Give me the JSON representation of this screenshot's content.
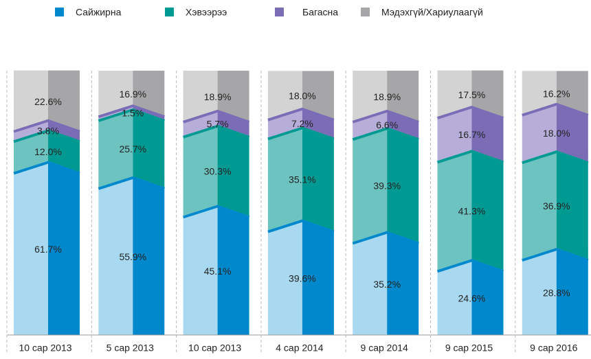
{
  "chart_data": {
    "type": "stacked_bar_100",
    "categories": [
      "10 сар 2013",
      "5 сар 2013",
      "10 сар 2013",
      "4 сар 2014",
      "9 сар 2014",
      "9 сар 2015",
      "9 сар 2016"
    ],
    "ylim": [
      0,
      100
    ],
    "series": [
      {
        "name": "Сайжирна",
        "color": "#0088cc",
        "light": "#a9d9f1",
        "values": [
          61.7,
          55.9,
          45.1,
          39.6,
          35.2,
          24.6,
          28.8
        ],
        "value_labels": [
          "61.7%",
          "55.9%",
          "45.1%",
          "39.6%",
          "35.2%",
          "24.6%",
          "28.8%"
        ]
      },
      {
        "name": "Хэвээрээ",
        "color": "#009a93",
        "light": "#6dc3bf",
        "values": [
          12.0,
          25.7,
          30.3,
          35.1,
          39.3,
          41.3,
          36.9
        ],
        "value_labels": [
          "12.0%",
          "25.7%",
          "30.3%",
          "35.1%",
          "39.3%",
          "41.3%",
          "36.9%"
        ]
      },
      {
        "name": "Багасна",
        "color": "#7b6db5",
        "light": "#b6aed9",
        "values": [
          3.8,
          1.5,
          5.7,
          7.2,
          6.6,
          16.7,
          18.0
        ],
        "value_labels": [
          "3.8%",
          "1.5%",
          "5.7%",
          "7.2%",
          "6.6%",
          "16.7%",
          "18.0%"
        ]
      },
      {
        "name": "Мэдэхгүй/Хариулаагүй",
        "color": "#a6a6a8",
        "light": "#d3d3d4",
        "values": [
          22.6,
          16.9,
          18.9,
          18.0,
          18.9,
          17.5,
          16.2
        ],
        "value_labels": [
          "22.6%",
          "16.9%",
          "18.9%",
          "18.0%",
          "18.9%",
          "17.5%",
          "16.2%"
        ]
      }
    ]
  }
}
